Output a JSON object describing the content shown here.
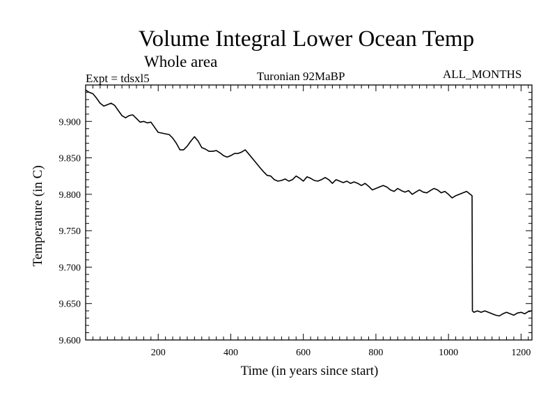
{
  "header": {
    "expt_label": "Expt = tdsxl5",
    "period_label": "Turonian  92MaBP",
    "months_label": "ALL_MONTHS"
  },
  "chart_data": {
    "type": "line",
    "title": "Volume Integral Lower Ocean Temp",
    "subtitle": "Whole area",
    "xlabel": "Time (in years since start)",
    "ylabel": "Temperature (in C)",
    "xlim": [
      0,
      1230
    ],
    "ylim": [
      9.6,
      9.95
    ],
    "xticks": [
      200,
      400,
      600,
      800,
      1000,
      1200
    ],
    "xtick_labels": [
      "200",
      "400",
      "600",
      "800",
      "1000",
      "1200"
    ],
    "yticks": [
      9.6,
      9.65,
      9.7,
      9.75,
      9.8,
      9.85,
      9.9
    ],
    "ytick_labels": [
      "9.600",
      "9.650",
      "9.700",
      "9.750",
      "9.800",
      "9.850",
      "9.900"
    ],
    "grid": false,
    "color": "#000000",
    "series": [
      {
        "name": "Temperature",
        "x": [
          0,
          10,
          20,
          30,
          40,
          50,
          60,
          70,
          80,
          90,
          100,
          110,
          120,
          130,
          140,
          150,
          160,
          170,
          180,
          190,
          200,
          210,
          220,
          230,
          240,
          250,
          260,
          270,
          280,
          290,
          300,
          310,
          320,
          330,
          340,
          350,
          360,
          370,
          380,
          390,
          400,
          410,
          420,
          430,
          440,
          450,
          460,
          470,
          480,
          490,
          500,
          510,
          520,
          530,
          540,
          550,
          560,
          570,
          580,
          590,
          600,
          610,
          620,
          630,
          640,
          650,
          660,
          670,
          680,
          690,
          700,
          710,
          720,
          730,
          740,
          750,
          760,
          770,
          780,
          790,
          800,
          810,
          820,
          830,
          840,
          850,
          860,
          870,
          880,
          890,
          900,
          910,
          920,
          930,
          940,
          950,
          960,
          970,
          980,
          990,
          1000,
          1010,
          1020,
          1030,
          1040,
          1050,
          1060,
          1065,
          1066,
          1070,
          1080,
          1090,
          1100,
          1110,
          1120,
          1130,
          1140,
          1150,
          1160,
          1170,
          1180,
          1190,
          1200,
          1210,
          1220,
          1230
        ],
        "y": [
          9.943,
          9.94,
          9.938,
          9.932,
          9.925,
          9.921,
          9.923,
          9.925,
          9.922,
          9.915,
          9.908,
          9.905,
          9.908,
          9.909,
          9.904,
          9.899,
          9.9,
          9.898,
          9.899,
          9.892,
          9.885,
          9.884,
          9.883,
          9.882,
          9.877,
          9.87,
          9.861,
          9.861,
          9.866,
          9.873,
          9.879,
          9.873,
          9.864,
          9.862,
          9.859,
          9.859,
          9.86,
          9.857,
          9.853,
          9.851,
          9.853,
          9.856,
          9.856,
          9.858,
          9.861,
          9.855,
          9.849,
          9.843,
          9.837,
          9.831,
          9.826,
          9.825,
          9.82,
          9.818,
          9.819,
          9.821,
          9.818,
          9.82,
          9.825,
          9.822,
          9.818,
          9.824,
          9.822,
          9.819,
          9.818,
          9.82,
          9.823,
          9.82,
          9.815,
          9.82,
          9.818,
          9.816,
          9.818,
          9.815,
          9.817,
          9.815,
          9.812,
          9.815,
          9.811,
          9.806,
          9.808,
          9.81,
          9.812,
          9.81,
          9.806,
          9.804,
          9.808,
          9.805,
          9.803,
          9.805,
          9.8,
          9.803,
          9.806,
          9.803,
          9.802,
          9.805,
          9.808,
          9.806,
          9.802,
          9.804,
          9.8,
          9.795,
          9.798,
          9.8,
          9.802,
          9.804,
          9.8,
          9.798,
          9.64,
          9.638,
          9.64,
          9.638,
          9.64,
          9.638,
          9.636,
          9.634,
          9.633,
          9.636,
          9.638,
          9.636,
          9.634,
          9.637,
          9.638,
          9.636,
          9.639,
          9.64
        ]
      }
    ]
  }
}
